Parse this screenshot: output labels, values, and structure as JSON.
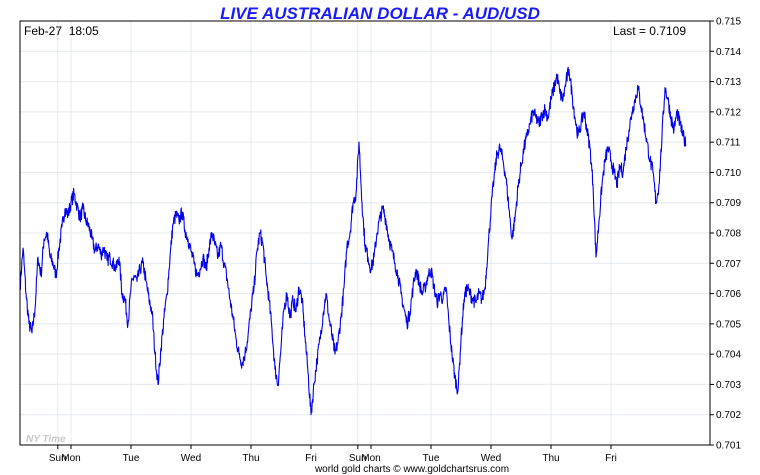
{
  "chart_data": {
    "type": "line",
    "title": "LIVE AUSTRALIAN DOLLAR - AUD/USD",
    "date_time": "Feb-27  18:05",
    "last_label": "Last = 0.7109",
    "watermark": "NY Time",
    "footer": "world gold charts © www.goldchartsrus.com",
    "xlabel": "",
    "ylabel": "",
    "ylim": [
      0.701,
      0.715
    ],
    "yticks": [
      "0.715",
      "0.714",
      "0.713",
      "0.712",
      "0.711",
      "0.710",
      "0.709",
      "0.708",
      "0.707",
      "0.706",
      "0.705",
      "0.704",
      "0.703",
      "0.702",
      "0.701"
    ],
    "xlim": [
      0,
      11.5
    ],
    "xticks": [
      {
        "label": "Sun",
        "x": 0.63
      },
      {
        "label": "Mon",
        "x": 0.85
      },
      {
        "label": "Tue",
        "x": 1.85
      },
      {
        "label": "Wed",
        "x": 2.85
      },
      {
        "label": "Thu",
        "x": 3.85
      },
      {
        "label": "Fri",
        "x": 4.85
      },
      {
        "label": "Sun",
        "x": 5.63
      },
      {
        "label": "Mon",
        "x": 5.85
      },
      {
        "label": "Tue",
        "x": 6.85
      },
      {
        "label": "Wed",
        "x": 7.85
      },
      {
        "label": "Thu",
        "x": 8.85
      },
      {
        "label": "Fri",
        "x": 9.85
      }
    ],
    "grid": true,
    "line_color": "#0000ee",
    "series": [
      {
        "name": "",
        "points": [
          [
            0.0,
            0.7062
          ],
          [
            0.05,
            0.7075
          ],
          [
            0.1,
            0.706
          ],
          [
            0.15,
            0.705
          ],
          [
            0.2,
            0.7047
          ],
          [
            0.25,
            0.7055
          ],
          [
            0.3,
            0.7072
          ],
          [
            0.35,
            0.7066
          ],
          [
            0.4,
            0.7078
          ],
          [
            0.45,
            0.708
          ],
          [
            0.5,
            0.7072
          ],
          [
            0.55,
            0.707
          ],
          [
            0.6,
            0.7066
          ],
          [
            0.65,
            0.7075
          ],
          [
            0.7,
            0.7082
          ],
          [
            0.75,
            0.7088
          ],
          [
            0.8,
            0.7086
          ],
          [
            0.85,
            0.709
          ],
          [
            0.9,
            0.7093
          ],
          [
            0.95,
            0.7089
          ],
          [
            1.0,
            0.7085
          ],
          [
            1.05,
            0.7088
          ],
          [
            1.1,
            0.7084
          ],
          [
            1.15,
            0.7082
          ],
          [
            1.2,
            0.7078
          ],
          [
            1.25,
            0.7074
          ],
          [
            1.3,
            0.7076
          ],
          [
            1.35,
            0.7073
          ],
          [
            1.4,
            0.7075
          ],
          [
            1.45,
            0.7071
          ],
          [
            1.5,
            0.7072
          ],
          [
            1.55,
            0.707
          ],
          [
            1.6,
            0.7068
          ],
          [
            1.65,
            0.7072
          ],
          [
            1.7,
            0.706
          ],
          [
            1.75,
            0.7058
          ],
          [
            1.8,
            0.705
          ],
          [
            1.85,
            0.7062
          ],
          [
            1.9,
            0.7066
          ],
          [
            1.95,
            0.7064
          ],
          [
            2.0,
            0.7068
          ],
          [
            2.05,
            0.707
          ],
          [
            2.1,
            0.7064
          ],
          [
            2.15,
            0.7058
          ],
          [
            2.2,
            0.7054
          ],
          [
            2.25,
            0.704
          ],
          [
            2.3,
            0.703
          ],
          [
            2.35,
            0.7042
          ],
          [
            2.4,
            0.7052
          ],
          [
            2.45,
            0.706
          ],
          [
            2.5,
            0.7072
          ],
          [
            2.55,
            0.7083
          ],
          [
            2.6,
            0.7086
          ],
          [
            2.65,
            0.7084
          ],
          [
            2.7,
            0.7087
          ],
          [
            2.75,
            0.7081
          ],
          [
            2.8,
            0.7078
          ],
          [
            2.85,
            0.7074
          ],
          [
            2.9,
            0.707
          ],
          [
            2.95,
            0.7066
          ],
          [
            3.0,
            0.7068
          ],
          [
            3.05,
            0.7072
          ],
          [
            3.1,
            0.7068
          ],
          [
            3.15,
            0.7075
          ],
          [
            3.2,
            0.708
          ],
          [
            3.25,
            0.7076
          ],
          [
            3.3,
            0.7072
          ],
          [
            3.35,
            0.7076
          ],
          [
            3.4,
            0.707
          ],
          [
            3.45,
            0.7065
          ],
          [
            3.5,
            0.7058
          ],
          [
            3.55,
            0.7052
          ],
          [
            3.6,
            0.7045
          ],
          [
            3.65,
            0.704
          ],
          [
            3.7,
            0.7037
          ],
          [
            3.75,
            0.704
          ],
          [
            3.8,
            0.7046
          ],
          [
            3.85,
            0.7055
          ],
          [
            3.9,
            0.7062
          ],
          [
            3.95,
            0.7074
          ],
          [
            4.0,
            0.708
          ],
          [
            4.05,
            0.7076
          ],
          [
            4.1,
            0.7066
          ],
          [
            4.15,
            0.7058
          ],
          [
            4.2,
            0.7048
          ],
          [
            4.25,
            0.7035
          ],
          [
            4.3,
            0.703
          ],
          [
            4.35,
            0.7042
          ],
          [
            4.4,
            0.7055
          ],
          [
            4.45,
            0.706
          ],
          [
            4.5,
            0.7052
          ],
          [
            4.55,
            0.7058
          ],
          [
            4.6,
            0.7054
          ],
          [
            4.65,
            0.7062
          ],
          [
            4.7,
            0.7058
          ],
          [
            4.75,
            0.7046
          ],
          [
            4.8,
            0.7034
          ],
          [
            4.85,
            0.702
          ],
          [
            4.9,
            0.703
          ],
          [
            4.95,
            0.7038
          ],
          [
            5.0,
            0.7045
          ],
          [
            5.05,
            0.7053
          ],
          [
            5.1,
            0.706
          ],
          [
            5.15,
            0.7052
          ],
          [
            5.2,
            0.7046
          ],
          [
            5.25,
            0.704
          ],
          [
            5.3,
            0.7044
          ],
          [
            5.35,
            0.7052
          ],
          [
            5.4,
            0.7062
          ],
          [
            5.45,
            0.7076
          ],
          [
            5.5,
            0.708
          ],
          [
            5.55,
            0.709
          ],
          [
            5.6,
            0.7093
          ],
          [
            5.65,
            0.711
          ],
          [
            5.7,
            0.709
          ],
          [
            5.75,
            0.7076
          ],
          [
            5.8,
            0.7072
          ],
          [
            5.85,
            0.7068
          ],
          [
            5.9,
            0.7072
          ],
          [
            5.95,
            0.708
          ],
          [
            6.0,
            0.7085
          ],
          [
            6.05,
            0.7088
          ],
          [
            6.1,
            0.7084
          ],
          [
            6.15,
            0.7078
          ],
          [
            6.2,
            0.7074
          ],
          [
            6.25,
            0.707
          ],
          [
            6.3,
            0.7066
          ],
          [
            6.35,
            0.706
          ],
          [
            6.4,
            0.7055
          ],
          [
            6.45,
            0.705
          ],
          [
            6.5,
            0.7054
          ],
          [
            6.55,
            0.7062
          ],
          [
            6.6,
            0.7068
          ],
          [
            6.65,
            0.7064
          ],
          [
            6.7,
            0.706
          ],
          [
            6.75,
            0.7062
          ],
          [
            6.8,
            0.7066
          ],
          [
            6.85,
            0.7068
          ],
          [
            6.9,
            0.7062
          ],
          [
            6.95,
            0.7057
          ],
          [
            7.0,
            0.706
          ],
          [
            7.05,
            0.7058
          ],
          [
            7.1,
            0.7062
          ],
          [
            7.15,
            0.705
          ],
          [
            7.2,
            0.704
          ],
          [
            7.25,
            0.7032
          ],
          [
            7.3,
            0.7028
          ],
          [
            7.35,
            0.7045
          ],
          [
            7.4,
            0.7058
          ],
          [
            7.45,
            0.7062
          ],
          [
            7.5,
            0.706
          ],
          [
            7.55,
            0.7058
          ],
          [
            7.6,
            0.7057
          ],
          [
            7.65,
            0.706
          ],
          [
            7.7,
            0.7058
          ],
          [
            7.75,
            0.7062
          ],
          [
            7.8,
            0.7075
          ],
          [
            7.85,
            0.7088
          ],
          [
            7.9,
            0.7098
          ],
          [
            7.95,
            0.7106
          ],
          [
            8.0,
            0.7108
          ],
          [
            8.05,
            0.7104
          ],
          [
            8.1,
            0.7098
          ],
          [
            8.15,
            0.7088
          ],
          [
            8.2,
            0.7078
          ],
          [
            8.25,
            0.7085
          ],
          [
            8.3,
            0.7095
          ],
          [
            8.35,
            0.7102
          ],
          [
            8.4,
            0.7108
          ],
          [
            8.45,
            0.7112
          ],
          [
            8.5,
            0.7116
          ],
          [
            8.55,
            0.712
          ],
          [
            8.6,
            0.7118
          ],
          [
            8.65,
            0.7116
          ],
          [
            8.7,
            0.7119
          ],
          [
            8.75,
            0.7121
          ],
          [
            8.8,
            0.7118
          ],
          [
            8.85,
            0.7124
          ],
          [
            8.9,
            0.7128
          ],
          [
            8.95,
            0.7132
          ],
          [
            9.0,
            0.7126
          ],
          [
            9.05,
            0.7124
          ],
          [
            9.1,
            0.713
          ],
          [
            9.15,
            0.7134
          ],
          [
            9.2,
            0.7126
          ],
          [
            9.25,
            0.7118
          ],
          [
            9.3,
            0.7112
          ],
          [
            9.35,
            0.7116
          ],
          [
            9.4,
            0.712
          ],
          [
            9.45,
            0.7114
          ],
          [
            9.5,
            0.7108
          ],
          [
            9.55,
            0.7096
          ],
          [
            9.6,
            0.7072
          ],
          [
            9.65,
            0.7084
          ],
          [
            9.7,
            0.7096
          ],
          [
            9.75,
            0.7104
          ],
          [
            9.8,
            0.7108
          ],
          [
            9.85,
            0.7104
          ],
          [
            9.9,
            0.71
          ],
          [
            9.95,
            0.7096
          ],
          [
            10.0,
            0.7102
          ],
          [
            10.05,
            0.71
          ],
          [
            10.1,
            0.7108
          ],
          [
            10.15,
            0.7114
          ],
          [
            10.2,
            0.712
          ],
          [
            10.25,
            0.7124
          ],
          [
            10.3,
            0.7128
          ],
          [
            10.35,
            0.7122
          ],
          [
            10.4,
            0.7116
          ],
          [
            10.45,
            0.711
          ],
          [
            10.5,
            0.7104
          ],
          [
            10.55,
            0.71
          ],
          [
            10.6,
            0.709
          ],
          [
            10.65,
            0.7096
          ],
          [
            10.7,
            0.7112
          ],
          [
            10.75,
            0.7128
          ],
          [
            10.8,
            0.7124
          ],
          [
            10.85,
            0.7118
          ],
          [
            10.9,
            0.7114
          ],
          [
            10.95,
            0.712
          ],
          [
            11.0,
            0.7116
          ],
          [
            11.05,
            0.7112
          ],
          [
            11.1,
            0.7109
          ]
        ]
      }
    ]
  }
}
